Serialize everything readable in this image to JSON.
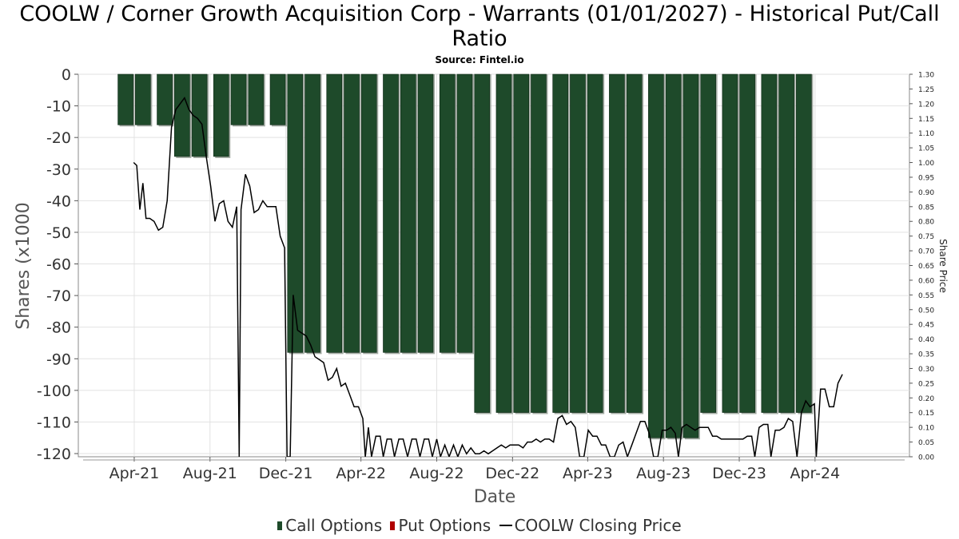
{
  "chart_data": {
    "type": "bar",
    "title": "COOLW / Corner Growth Acquisition Corp - Warrants (01/01/2027) - Historical Put/Call Ratio",
    "subtitle": "Source: Fintel.io",
    "xlabel": "Date",
    "ylabel": "Shares (x1000",
    "y2label": "Share Price",
    "ylim": [
      -121,
      0
    ],
    "y2lim": [
      0,
      1.3
    ],
    "xlim": [
      "2021-01-01",
      "2024-08-31"
    ],
    "grid": true,
    "x_ticks": [
      {
        "label": "Apr-21",
        "date": "2021-04-01"
      },
      {
        "label": "Aug-21",
        "date": "2021-08-01"
      },
      {
        "label": "Dec-21",
        "date": "2021-12-01"
      },
      {
        "label": "Apr-22",
        "date": "2022-04-01"
      },
      {
        "label": "Aug-22",
        "date": "2022-08-01"
      },
      {
        "label": "Dec-22",
        "date": "2022-12-01"
      },
      {
        "label": "Apr-23",
        "date": "2023-04-01"
      },
      {
        "label": "Aug-23",
        "date": "2023-08-01"
      },
      {
        "label": "Dec-23",
        "date": "2023-12-01"
      },
      {
        "label": "Apr-24",
        "date": "2024-04-01"
      }
    ],
    "y_ticks": [
      "0",
      "-10",
      "-20",
      "-30",
      "-40",
      "-50",
      "-60",
      "-70",
      "-80",
      "-90",
      "-100",
      "-110",
      "-120"
    ],
    "y2_ticks": [
      "1.30",
      "1.25",
      "1.20",
      "1.15",
      "1.10",
      "1.05",
      "1.00",
      "0.95",
      "0.90",
      "0.85",
      "0.80",
      "0.75",
      "0.70",
      "0.65",
      "0.60",
      "0.55",
      "0.50",
      "0.45",
      "0.40",
      "0.35",
      "0.30",
      "0.25",
      "0.20",
      "0.15",
      "0.10",
      "0.05",
      "0.00"
    ],
    "series": [
      {
        "name": "Call Options",
        "color": "#1e4a2a",
        "points": [
          {
            "date": "2021-03-18",
            "value": -16
          },
          {
            "date": "2021-04-15",
            "value": -16
          },
          {
            "date": "2021-05-20",
            "value": -16
          },
          {
            "date": "2021-06-17",
            "value": -26
          },
          {
            "date": "2021-07-15",
            "value": -26
          },
          {
            "date": "2021-08-19",
            "value": -26
          },
          {
            "date": "2021-09-16",
            "value": -16
          },
          {
            "date": "2021-10-14",
            "value": -16
          },
          {
            "date": "2021-11-18",
            "value": -16
          },
          {
            "date": "2021-12-16",
            "value": -88
          },
          {
            "date": "2022-01-13",
            "value": -88
          },
          {
            "date": "2022-02-17",
            "value": -88
          },
          {
            "date": "2022-03-17",
            "value": -88
          },
          {
            "date": "2022-04-14",
            "value": -88
          },
          {
            "date": "2022-05-19",
            "value": -88
          },
          {
            "date": "2022-06-16",
            "value": -88
          },
          {
            "date": "2022-07-14",
            "value": -88
          },
          {
            "date": "2022-08-18",
            "value": -88
          },
          {
            "date": "2022-09-15",
            "value": -88
          },
          {
            "date": "2022-10-13",
            "value": -107
          },
          {
            "date": "2022-11-17",
            "value": -107
          },
          {
            "date": "2022-12-15",
            "value": -107
          },
          {
            "date": "2023-01-12",
            "value": -107
          },
          {
            "date": "2023-02-16",
            "value": -107
          },
          {
            "date": "2023-03-16",
            "value": -107
          },
          {
            "date": "2023-04-13",
            "value": -107
          },
          {
            "date": "2023-05-18",
            "value": -107
          },
          {
            "date": "2023-06-15",
            "value": -107
          },
          {
            "date": "2023-07-20",
            "value": -115
          },
          {
            "date": "2023-08-17",
            "value": -115
          },
          {
            "date": "2023-09-14",
            "value": -115
          },
          {
            "date": "2023-10-12",
            "value": -107
          },
          {
            "date": "2023-11-16",
            "value": -107
          },
          {
            "date": "2023-12-14",
            "value": -107
          },
          {
            "date": "2024-01-18",
            "value": -107
          },
          {
            "date": "2024-02-15",
            "value": -107
          },
          {
            "date": "2024-03-14",
            "value": -107
          }
        ]
      },
      {
        "name": "Put Options",
        "color": "#b00000",
        "points": []
      },
      {
        "name": "COOLW Closing Price",
        "color": "#000000",
        "axis": "right",
        "points": [
          {
            "date": "2021-03-31",
            "value": 1.0
          },
          {
            "date": "2021-04-05",
            "value": 0.99
          },
          {
            "date": "2021-04-10",
            "value": 0.84
          },
          {
            "date": "2021-04-15",
            "value": 0.93
          },
          {
            "date": "2021-04-20",
            "value": 0.81
          },
          {
            "date": "2021-04-26",
            "value": 0.81
          },
          {
            "date": "2021-05-03",
            "value": 0.8
          },
          {
            "date": "2021-05-10",
            "value": 0.77
          },
          {
            "date": "2021-05-17",
            "value": 0.78
          },
          {
            "date": "2021-05-24",
            "value": 0.87
          },
          {
            "date": "2021-05-31",
            "value": 1.12
          },
          {
            "date": "2021-06-07",
            "value": 1.18
          },
          {
            "date": "2021-06-14",
            "value": 1.2
          },
          {
            "date": "2021-06-21",
            "value": 1.22
          },
          {
            "date": "2021-06-28",
            "value": 1.18
          },
          {
            "date": "2021-07-05",
            "value": 1.16
          },
          {
            "date": "2021-07-12",
            "value": 1.15
          },
          {
            "date": "2021-07-19",
            "value": 1.13
          },
          {
            "date": "2021-07-26",
            "value": 1.02
          },
          {
            "date": "2021-08-02",
            "value": 0.92
          },
          {
            "date": "2021-08-09",
            "value": 0.8
          },
          {
            "date": "2021-08-16",
            "value": 0.86
          },
          {
            "date": "2021-08-23",
            "value": 0.87
          },
          {
            "date": "2021-08-30",
            "value": 0.8
          },
          {
            "date": "2021-09-06",
            "value": 0.78
          },
          {
            "date": "2021-09-13",
            "value": 0.85
          },
          {
            "date": "2021-09-17",
            "value": 0.0
          },
          {
            "date": "2021-09-20",
            "value": 0.84
          },
          {
            "date": "2021-09-27",
            "value": 0.96
          },
          {
            "date": "2021-10-04",
            "value": 0.92
          },
          {
            "date": "2021-10-11",
            "value": 0.83
          },
          {
            "date": "2021-10-18",
            "value": 0.84
          },
          {
            "date": "2021-10-25",
            "value": 0.87
          },
          {
            "date": "2021-11-01",
            "value": 0.85
          },
          {
            "date": "2021-11-08",
            "value": 0.85
          },
          {
            "date": "2021-11-15",
            "value": 0.85
          },
          {
            "date": "2021-11-22",
            "value": 0.75
          },
          {
            "date": "2021-11-29",
            "value": 0.71
          },
          {
            "date": "2021-12-03",
            "value": 0.0
          },
          {
            "date": "2021-12-08",
            "value": 0.0
          },
          {
            "date": "2021-12-13",
            "value": 0.55
          },
          {
            "date": "2021-12-20",
            "value": 0.43
          },
          {
            "date": "2021-12-27",
            "value": 0.42
          },
          {
            "date": "2022-01-03",
            "value": 0.41
          },
          {
            "date": "2022-01-10",
            "value": 0.38
          },
          {
            "date": "2022-01-17",
            "value": 0.34
          },
          {
            "date": "2022-01-24",
            "value": 0.33
          },
          {
            "date": "2022-01-31",
            "value": 0.32
          },
          {
            "date": "2022-02-07",
            "value": 0.26
          },
          {
            "date": "2022-02-14",
            "value": 0.27
          },
          {
            "date": "2022-02-21",
            "value": 0.3
          },
          {
            "date": "2022-02-28",
            "value": 0.24
          },
          {
            "date": "2022-03-07",
            "value": 0.25
          },
          {
            "date": "2022-03-14",
            "value": 0.21
          },
          {
            "date": "2022-03-21",
            "value": 0.17
          },
          {
            "date": "2022-03-28",
            "value": 0.17
          },
          {
            "date": "2022-04-04",
            "value": 0.13
          },
          {
            "date": "2022-04-08",
            "value": 0.0
          },
          {
            "date": "2022-04-13",
            "value": 0.1
          },
          {
            "date": "2022-04-18",
            "value": 0.0
          },
          {
            "date": "2022-04-25",
            "value": 0.07
          },
          {
            "date": "2022-05-02",
            "value": 0.07
          },
          {
            "date": "2022-05-07",
            "value": 0.0
          },
          {
            "date": "2022-05-13",
            "value": 0.06
          },
          {
            "date": "2022-05-20",
            "value": 0.06
          },
          {
            "date": "2022-05-25",
            "value": 0.0
          },
          {
            "date": "2022-06-01",
            "value": 0.06
          },
          {
            "date": "2022-06-08",
            "value": 0.06
          },
          {
            "date": "2022-06-15",
            "value": 0.0
          },
          {
            "date": "2022-06-22",
            "value": 0.06
          },
          {
            "date": "2022-06-29",
            "value": 0.06
          },
          {
            "date": "2022-07-05",
            "value": 0.0
          },
          {
            "date": "2022-07-12",
            "value": 0.06
          },
          {
            "date": "2022-07-19",
            "value": 0.06
          },
          {
            "date": "2022-07-25",
            "value": 0.0
          },
          {
            "date": "2022-08-01",
            "value": 0.06
          },
          {
            "date": "2022-08-07",
            "value": 0.0
          },
          {
            "date": "2022-08-14",
            "value": 0.04
          },
          {
            "date": "2022-08-21",
            "value": 0.0
          },
          {
            "date": "2022-08-28",
            "value": 0.04
          },
          {
            "date": "2022-09-04",
            "value": 0.0
          },
          {
            "date": "2022-09-11",
            "value": 0.04
          },
          {
            "date": "2022-09-18",
            "value": 0.01
          },
          {
            "date": "2022-09-25",
            "value": 0.03
          },
          {
            "date": "2022-10-02",
            "value": 0.01
          },
          {
            "date": "2022-10-09",
            "value": 0.01
          },
          {
            "date": "2022-10-16",
            "value": 0.02
          },
          {
            "date": "2022-10-23",
            "value": 0.01
          },
          {
            "date": "2022-10-30",
            "value": 0.02
          },
          {
            "date": "2022-11-06",
            "value": 0.03
          },
          {
            "date": "2022-11-13",
            "value": 0.04
          },
          {
            "date": "2022-11-20",
            "value": 0.03
          },
          {
            "date": "2022-11-27",
            "value": 0.04
          },
          {
            "date": "2022-12-04",
            "value": 0.04
          },
          {
            "date": "2022-12-11",
            "value": 0.04
          },
          {
            "date": "2022-12-18",
            "value": 0.03
          },
          {
            "date": "2022-12-25",
            "value": 0.05
          },
          {
            "date": "2023-01-01",
            "value": 0.05
          },
          {
            "date": "2023-01-08",
            "value": 0.06
          },
          {
            "date": "2023-01-15",
            "value": 0.05
          },
          {
            "date": "2023-01-22",
            "value": 0.06
          },
          {
            "date": "2023-01-29",
            "value": 0.06
          },
          {
            "date": "2023-02-05",
            "value": 0.05
          },
          {
            "date": "2023-02-12",
            "value": 0.13
          },
          {
            "date": "2023-02-19",
            "value": 0.14
          },
          {
            "date": "2023-02-26",
            "value": 0.11
          },
          {
            "date": "2023-03-05",
            "value": 0.12
          },
          {
            "date": "2023-03-12",
            "value": 0.1
          },
          {
            "date": "2023-03-19",
            "value": 0.0
          },
          {
            "date": "2023-03-26",
            "value": 0.0
          },
          {
            "date": "2023-04-02",
            "value": 0.09
          },
          {
            "date": "2023-04-09",
            "value": 0.07
          },
          {
            "date": "2023-04-16",
            "value": 0.07
          },
          {
            "date": "2023-04-23",
            "value": 0.04
          },
          {
            "date": "2023-04-30",
            "value": 0.04
          },
          {
            "date": "2023-05-07",
            "value": 0.0
          },
          {
            "date": "2023-05-14",
            "value": 0.0
          },
          {
            "date": "2023-05-21",
            "value": 0.04
          },
          {
            "date": "2023-05-28",
            "value": 0.05
          },
          {
            "date": "2023-06-04",
            "value": 0.0
          },
          {
            "date": "2023-06-11",
            "value": 0.04
          },
          {
            "date": "2023-06-18",
            "value": 0.08
          },
          {
            "date": "2023-06-25",
            "value": 0.12
          },
          {
            "date": "2023-07-02",
            "value": 0.12
          },
          {
            "date": "2023-07-09",
            "value": 0.08
          },
          {
            "date": "2023-07-16",
            "value": 0.0
          },
          {
            "date": "2023-07-23",
            "value": 0.0
          },
          {
            "date": "2023-07-30",
            "value": 0.09
          },
          {
            "date": "2023-08-06",
            "value": 0.09
          },
          {
            "date": "2023-08-13",
            "value": 0.1
          },
          {
            "date": "2023-08-20",
            "value": 0.08
          },
          {
            "date": "2023-08-25",
            "value": 0.0
          },
          {
            "date": "2023-08-31",
            "value": 0.1
          },
          {
            "date": "2023-09-07",
            "value": 0.11
          },
          {
            "date": "2023-09-14",
            "value": 0.1
          },
          {
            "date": "2023-09-21",
            "value": 0.09
          },
          {
            "date": "2023-09-28",
            "value": 0.1
          },
          {
            "date": "2023-10-05",
            "value": 0.1
          },
          {
            "date": "2023-10-12",
            "value": 0.1
          },
          {
            "date": "2023-10-19",
            "value": 0.07
          },
          {
            "date": "2023-10-26",
            "value": 0.07
          },
          {
            "date": "2023-11-02",
            "value": 0.06
          },
          {
            "date": "2023-11-09",
            "value": 0.06
          },
          {
            "date": "2023-11-16",
            "value": 0.06
          },
          {
            "date": "2023-11-23",
            "value": 0.06
          },
          {
            "date": "2023-11-30",
            "value": 0.06
          },
          {
            "date": "2023-12-07",
            "value": 0.06
          },
          {
            "date": "2023-12-14",
            "value": 0.07
          },
          {
            "date": "2023-12-21",
            "value": 0.07
          },
          {
            "date": "2023-12-26",
            "value": 0.0
          },
          {
            "date": "2024-01-02",
            "value": 0.1
          },
          {
            "date": "2024-01-09",
            "value": 0.11
          },
          {
            "date": "2024-01-16",
            "value": 0.11
          },
          {
            "date": "2024-01-21",
            "value": 0.0
          },
          {
            "date": "2024-01-28",
            "value": 0.09
          },
          {
            "date": "2024-02-04",
            "value": 0.09
          },
          {
            "date": "2024-02-11",
            "value": 0.1
          },
          {
            "date": "2024-02-18",
            "value": 0.13
          },
          {
            "date": "2024-02-25",
            "value": 0.12
          },
          {
            "date": "2024-03-03",
            "value": 0.0
          },
          {
            "date": "2024-03-10",
            "value": 0.15
          },
          {
            "date": "2024-03-17",
            "value": 0.19
          },
          {
            "date": "2024-03-24",
            "value": 0.17
          },
          {
            "date": "2024-03-31",
            "value": 0.18
          },
          {
            "date": "2024-04-03",
            "value": 0.0
          },
          {
            "date": "2024-04-10",
            "value": 0.23
          },
          {
            "date": "2024-04-17",
            "value": 0.23
          },
          {
            "date": "2024-04-24",
            "value": 0.17
          },
          {
            "date": "2024-05-01",
            "value": 0.17
          },
          {
            "date": "2024-05-08",
            "value": 0.25
          },
          {
            "date": "2024-05-15",
            "value": 0.28
          }
        ]
      }
    ]
  }
}
